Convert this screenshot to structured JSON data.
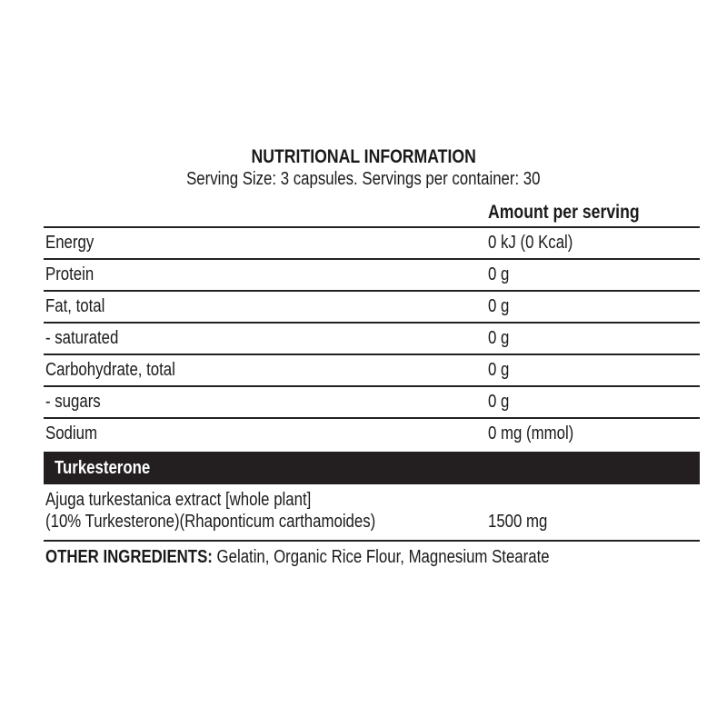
{
  "title": "NUTRITIONAL INFORMATION",
  "subtitle": "Serving Size: 3 capsules. Servings per container: 30",
  "column_header": "Amount per serving",
  "rows": [
    {
      "label": "Energy",
      "value": "0 kJ (0 Kcal)"
    },
    {
      "label": "Protein",
      "value": "0 g"
    },
    {
      "label": "Fat, total",
      "value": "0 g"
    },
    {
      "label": "- saturated",
      "value": "0 g"
    },
    {
      "label": "Carbohydrate, total",
      "value": "0 g"
    },
    {
      "label": "- sugars",
      "value": "0 g"
    },
    {
      "label": "Sodium",
      "value": "0 mg (mmol)"
    }
  ],
  "section": {
    "title": "Turkesterone",
    "ingredient_line1": "Ajuga turkestanica extract [whole plant]",
    "ingredient_line2": "(10% Turkesterone)(Rhaponticum carthamoides)",
    "value": "1500 mg"
  },
  "other": {
    "label": "OTHER INGREDIENTS:",
    "text": " Gelatin, Organic Rice Flour, Magnesium Stearate"
  }
}
